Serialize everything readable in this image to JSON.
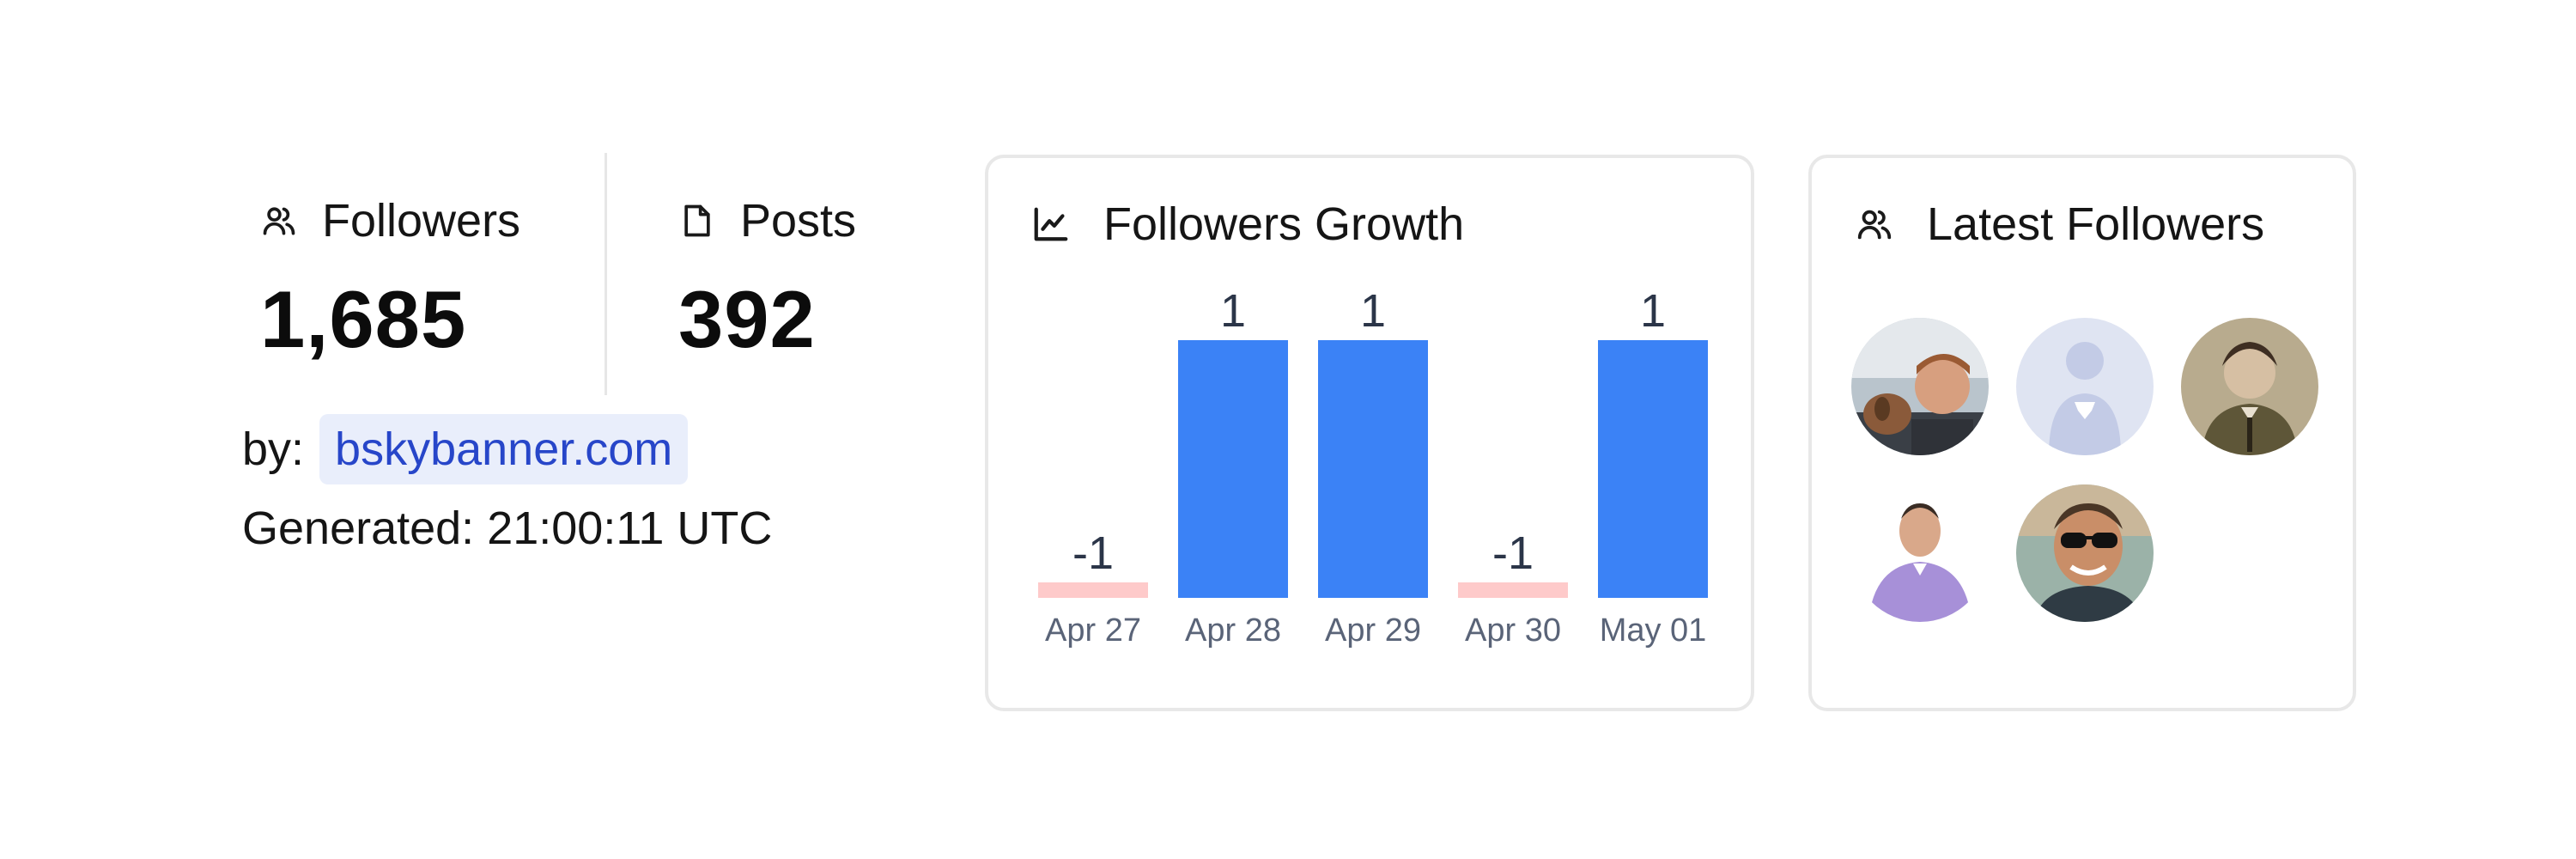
{
  "stats": {
    "followers": {
      "label": "Followers",
      "value": "1,685",
      "icon": "users-icon"
    },
    "posts": {
      "label": "Posts",
      "value": "392",
      "icon": "document-icon"
    }
  },
  "byline": {
    "label": "by:",
    "link": "bskybanner.com"
  },
  "generated": "Generated: 21:00:11 UTC",
  "growth_card": {
    "title": "Followers Growth",
    "icon": "line-chart-icon"
  },
  "latest_card": {
    "title": "Latest Followers",
    "icon": "users-icon"
  },
  "chart_data": {
    "type": "bar",
    "categories": [
      "Apr 27",
      "Apr 28",
      "Apr 29",
      "Apr 30",
      "May 01"
    ],
    "values": [
      -1,
      1,
      1,
      -1,
      1
    ],
    "data_labels": [
      "-1",
      "1",
      "1",
      "-1",
      "1"
    ],
    "colors": {
      "positive": "#3b82f6",
      "negative": "#fecaca"
    }
  },
  "avatars": [
    {
      "name": "follower-avatar-1",
      "desc": "man with dog"
    },
    {
      "name": "follower-avatar-2",
      "desc": "placeholder silhouette"
    },
    {
      "name": "follower-avatar-3",
      "desc": "vintage portrait"
    },
    {
      "name": "follower-avatar-4",
      "desc": "man in purple shirt"
    },
    {
      "name": "follower-avatar-5",
      "desc": "man with sunglasses"
    }
  ]
}
